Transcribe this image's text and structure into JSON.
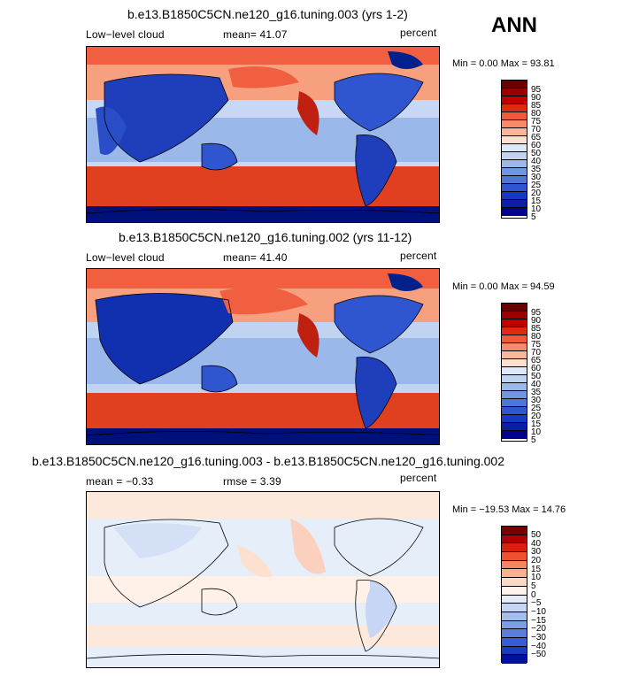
{
  "season": "ANN",
  "units": "percent",
  "panels": [
    {
      "title": "b.e13.B1850C5CN.ne120_g16.tuning.003 (yrs 1-2)",
      "left_label": "Low−level cloud",
      "stat": "mean=  41.07",
      "minmax": "Min =   0.00 Max =  93.81",
      "colorbar_labels": [
        "95",
        "90",
        "85",
        "80",
        "75",
        "70",
        "65",
        "60",
        "50",
        "40",
        "35",
        "30",
        "25",
        "20",
        "15",
        "10",
        "5"
      ]
    },
    {
      "title": "b.e13.B1850C5CN.ne120_g16.tuning.002 (yrs 11-12)",
      "left_label": "Low−level cloud",
      "stat": "mean=  41.40",
      "minmax": "Min =   0.00 Max =  94.59",
      "colorbar_labels": [
        "95",
        "90",
        "85",
        "80",
        "75",
        "70",
        "65",
        "60",
        "50",
        "40",
        "35",
        "30",
        "25",
        "20",
        "15",
        "10",
        "5"
      ]
    },
    {
      "title": "b.e13.B1850C5CN.ne120_g16.tuning.003 - b.e13.B1850C5CN.ne120_g16.tuning.002",
      "left_label": "mean =  −0.33",
      "stat": "rmse =   3.39",
      "minmax": "Min = −19.53 Max =  14.76",
      "colorbar_labels": [
        "50",
        "40",
        "30",
        "20",
        "15",
        "10",
        "5",
        "0",
        "−5",
        "−10",
        "−15",
        "−20",
        "−30",
        "−40",
        "−50"
      ]
    }
  ],
  "colors": {
    "abs_scale": [
      "#6b0000",
      "#990000",
      "#c00000",
      "#dd2a10",
      "#f05a3a",
      "#f78a68",
      "#fbb59a",
      "#fde0d0",
      "#dde8f8",
      "#c0d4f2",
      "#9ab8ea",
      "#7096e0",
      "#4e76d8",
      "#2f56d0",
      "#1738c0",
      "#0a1ea8",
      "#00008c",
      "#000070"
    ],
    "diff_scale": [
      "#7a0000",
      "#b00000",
      "#d8200a",
      "#ee5030",
      "#f7855f",
      "#fbb090",
      "#fdd8c4",
      "#fff2ea",
      "#e4ecfa",
      "#c6d6f4",
      "#a3bdee",
      "#7d9de4",
      "#5a7ddc",
      "#3a5cd2",
      "#1a3ac0",
      "#00109a"
    ],
    "ocean_high": "#d83018",
    "ocean_mid": "#fde6da",
    "land_low": "#1e3ebc",
    "diff_base": "#e6eefa"
  }
}
